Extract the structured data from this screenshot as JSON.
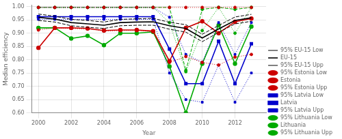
{
  "chart_data": {
    "type": "line",
    "x": [
      2000,
      2001,
      2002,
      2003,
      2004,
      2005,
      2006,
      2007,
      2008,
      2009,
      2010,
      2011,
      2012,
      2013
    ],
    "series": [
      {
        "name": "95% EU-15 Low",
        "color": "#000000",
        "line_style": "dashed",
        "marker": "none",
        "values": [
          0.948,
          0.942,
          0.928,
          0.922,
          0.918,
          0.928,
          0.93,
          0.93,
          0.915,
          0.904,
          0.868,
          0.903,
          0.935,
          0.945
        ]
      },
      {
        "name": "EU-15",
        "color": "#000000",
        "line_style": "solid",
        "marker": "none",
        "values": [
          0.96,
          0.953,
          0.94,
          0.935,
          0.93,
          0.94,
          0.942,
          0.943,
          0.928,
          0.918,
          0.882,
          0.916,
          0.948,
          0.958
        ]
      },
      {
        "name": "95% EU-15 Upp",
        "color": "#000000",
        "line_style": "dashed",
        "marker": "none",
        "values": [
          0.972,
          0.964,
          0.952,
          0.948,
          0.942,
          0.952,
          0.954,
          0.956,
          0.941,
          0.932,
          0.896,
          0.929,
          0.961,
          0.971
        ]
      },
      {
        "name": "95% Estonia Low",
        "color": "#cc0000",
        "line_style": "dotted",
        "marker": "circle",
        "values": [
          0.912,
          0.92,
          0.918,
          0.916,
          0.908,
          0.91,
          0.91,
          0.906,
          0.79,
          0.812,
          0.79,
          0.78,
          0.81,
          0.82
        ]
      },
      {
        "name": "Estonia",
        "color": "#cc0000",
        "line_style": "solid",
        "marker": "circle",
        "values": [
          0.845,
          0.92,
          0.92,
          0.918,
          0.91,
          0.912,
          0.912,
          0.908,
          0.795,
          0.92,
          0.945,
          0.9,
          0.943,
          0.955
        ]
      },
      {
        "name": "95% Estonia Upp",
        "color": "#cc0000",
        "line_style": "dotted",
        "marker": "circle",
        "values": [
          0.997,
          0.997,
          0.997,
          0.997,
          0.997,
          0.997,
          0.997,
          0.997,
          0.997,
          0.997,
          0.997,
          0.997,
          0.997,
          0.997
        ]
      },
      {
        "name": "95% Latvia Low",
        "color": "#0000cc",
        "line_style": "dotted",
        "marker": "square",
        "values": [
          0.952,
          0.952,
          0.952,
          0.952,
          0.952,
          0.952,
          0.952,
          0.952,
          0.75,
          0.65,
          0.64,
          0.78,
          0.64,
          0.75
        ]
      },
      {
        "name": "Latvia",
        "color": "#0000cc",
        "line_style": "solid",
        "marker": "square",
        "values": [
          0.962,
          0.962,
          0.962,
          0.962,
          0.962,
          0.962,
          0.962,
          0.962,
          0.84,
          0.71,
          0.71,
          0.87,
          0.71,
          0.86
        ]
      },
      {
        "name": "95% Latvia Upp",
        "color": "#0000cc",
        "line_style": "dotted",
        "marker": "square",
        "values": [
          0.997,
          0.997,
          0.997,
          0.997,
          0.997,
          0.997,
          0.997,
          0.997,
          0.96,
          0.82,
          0.79,
          0.94,
          0.82,
          0.94
        ]
      },
      {
        "name": "95% Lithuania Low",
        "color": "#00aa00",
        "line_style": "dotted",
        "marker": "circle",
        "values": [
          0.997,
          0.997,
          0.997,
          0.997,
          0.997,
          0.997,
          0.997,
          0.997,
          0.94,
          0.755,
          0.91,
          0.997,
          0.9,
          0.997
        ]
      },
      {
        "name": "Lithuania",
        "color": "#00aa00",
        "line_style": "solid",
        "marker": "circle",
        "values": [
          0.92,
          0.92,
          0.88,
          0.89,
          0.855,
          0.9,
          0.9,
          0.905,
          0.775,
          0.6,
          0.785,
          0.93,
          0.785,
          0.925
        ]
      },
      {
        "name": "95% Lithuania Upp",
        "color": "#00aa00",
        "line_style": "dashed",
        "marker": "circle",
        "values": [
          0.997,
          0.997,
          0.997,
          0.997,
          0.997,
          0.997,
          0.997,
          0.997,
          0.997,
          0.76,
          0.99,
          0.997,
          0.99,
          0.997
        ]
      }
    ],
    "xlabel": "Year",
    "ylabel": "Median efficiency",
    "xlim": [
      1999.6,
      2013.9
    ],
    "xticks": [
      2000,
      2002,
      2004,
      2006,
      2008,
      2010,
      2012
    ],
    "ylim": [
      0.6,
      1.005
    ],
    "yticks": [
      {
        "value": 0.6,
        "label": "0.60"
      },
      {
        "value": 0.65,
        "label": "0.65"
      },
      {
        "value": 0.7,
        "label": "0.70"
      },
      {
        "value": 0.75,
        "label": "0.75"
      },
      {
        "value": 0.8,
        "label": "0.80"
      },
      {
        "value": 0.85,
        "label": "0.85"
      },
      {
        "value": 0.9,
        "label": "0.90"
      },
      {
        "value": 0.95,
        "label": "0.95"
      },
      {
        "value": 1.0,
        "label": "1.00"
      }
    ],
    "grid": true,
    "legend": "lower right"
  }
}
